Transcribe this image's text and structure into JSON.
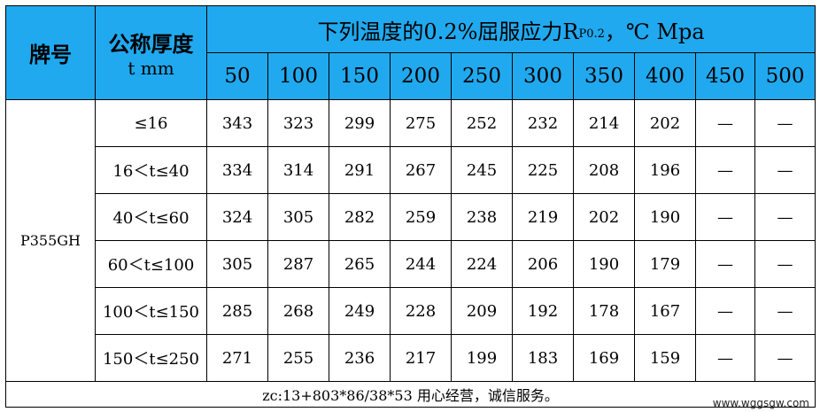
{
  "header": {
    "grade_label": "牌号",
    "thickness_label_line1": "公称厚度",
    "thickness_label_line2": "t mm",
    "title_prefix": "下列温度的0.2%屈服应力R",
    "title_sub": "P0.2",
    "title_suffix": "，℃ Mpa",
    "temperatures": [
      "50",
      "100",
      "150",
      "200",
      "250",
      "300",
      "350",
      "400",
      "450",
      "500"
    ]
  },
  "grade": "P355GH",
  "rows": [
    {
      "range": "≤16",
      "values": [
        "343",
        "323",
        "299",
        "275",
        "252",
        "232",
        "214",
        "202",
        "—",
        "—"
      ]
    },
    {
      "range": "16＜t≤40",
      "values": [
        "334",
        "314",
        "291",
        "267",
        "245",
        "225",
        "208",
        "196",
        "—",
        "—"
      ]
    },
    {
      "range": "40＜t≤60",
      "values": [
        "324",
        "305",
        "282",
        "259",
        "238",
        "219",
        "202",
        "190",
        "—",
        "—"
      ]
    },
    {
      "range": "60＜t≤100",
      "values": [
        "305",
        "287",
        "265",
        "244",
        "224",
        "206",
        "190",
        "179",
        "—",
        "—"
      ]
    },
    {
      "range": "100＜t≤150",
      "values": [
        "285",
        "268",
        "249",
        "228",
        "209",
        "192",
        "178",
        "167",
        "—",
        "—"
      ]
    },
    {
      "range": "150＜t≤250",
      "values": [
        "271",
        "255",
        "236",
        "217",
        "199",
        "183",
        "169",
        "159",
        "—",
        "—"
      ]
    }
  ],
  "footer": "zc:13+803*86/38*53 用心经营，诚信服务。",
  "watermark": "www.wggsgw.com",
  "colors": {
    "header_bg": "#20a9ef",
    "border": "#000000"
  }
}
